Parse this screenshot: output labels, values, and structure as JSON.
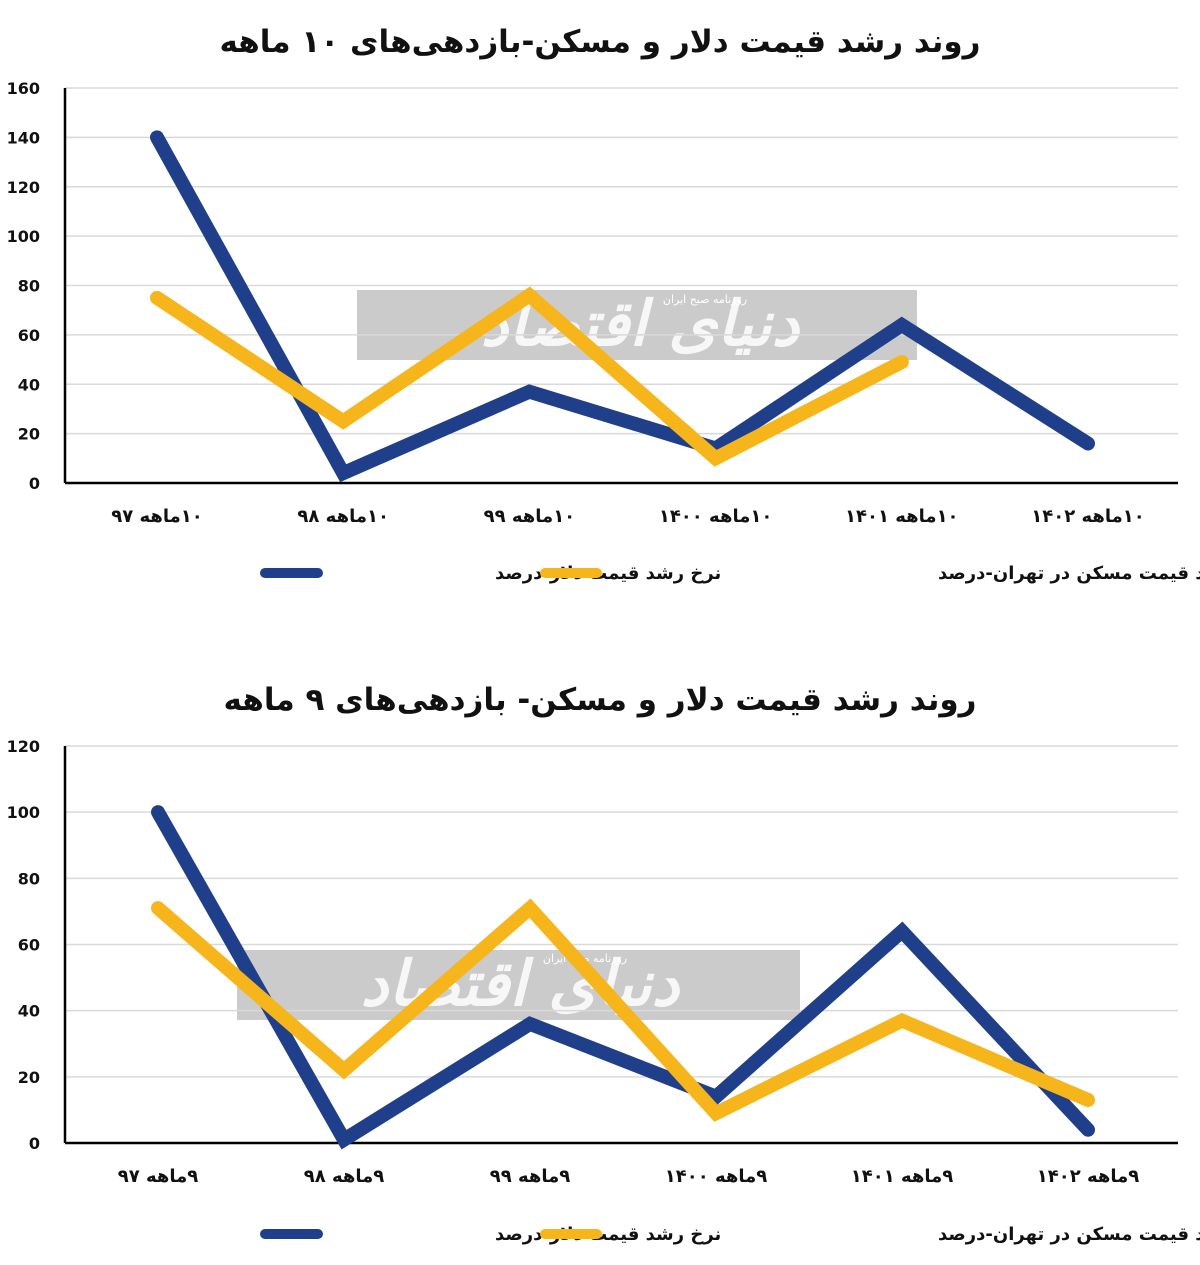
{
  "chart_data": [
    {
      "type": "line",
      "title": "روند رشد قیمت دلار و مسکن-بازدهی‌های ۱۰ ماهه",
      "xlabel": "",
      "ylabel": "",
      "ylim": [
        0,
        160
      ],
      "yticks": [
        "0",
        "20",
        "40",
        "60",
        "80",
        "100",
        "120",
        "140",
        "160"
      ],
      "categories": [
        "۱۰ماهه ۹۷",
        "۱۰ماهه ۹۸",
        "۱۰ماهه ۹۹",
        "۱۰ماهه ۱۴۰۰",
        "۱۰ماهه ۱۴۰۱",
        "۱۰ماهه ۱۴۰۲"
      ],
      "grid": true,
      "legend_position": "bottom",
      "series": [
        {
          "name": "نرخ رشد قیمت دلار-درصد",
          "color": "#1f3f8a",
          "values": [
            140,
            4,
            37,
            14,
            64,
            16
          ]
        },
        {
          "name": "نرخ رشد قیمت مسکن در تهران-درصد",
          "color": "#f7b51c",
          "values": [
            75,
            25,
            76,
            10,
            49,
            null
          ]
        }
      ]
    },
    {
      "type": "line",
      "title": "روند رشد قیمت دلار و مسکن- بازدهی‌های ۹ ماهه",
      "xlabel": "",
      "ylabel": "",
      "ylim": [
        0,
        120
      ],
      "yticks": [
        "0",
        "20",
        "40",
        "60",
        "80",
        "100",
        "120"
      ],
      "categories": [
        "۹ماهه ۹۷",
        "۹ماهه ۹۸",
        "۹ماهه ۹۹",
        "۹ماهه ۱۴۰۰",
        "۹ماهه ۱۴۰۱",
        "۹ماهه ۱۴۰۲"
      ],
      "grid": true,
      "legend_position": "bottom",
      "series": [
        {
          "name": "نرخ رشد قیمت دلار-درصد",
          "color": "#1f3f8a",
          "values": [
            100,
            1,
            36,
            14,
            64,
            4
          ]
        },
        {
          "name": "نرخ رشد قیمت مسکن در تهران-درصد",
          "color": "#f7b51c",
          "values": [
            71,
            22,
            71,
            9,
            37,
            13
          ]
        }
      ]
    }
  ],
  "watermark": {
    "main": "دنیای اقتصاد",
    "sub": "روزنامه صبح ایران"
  }
}
